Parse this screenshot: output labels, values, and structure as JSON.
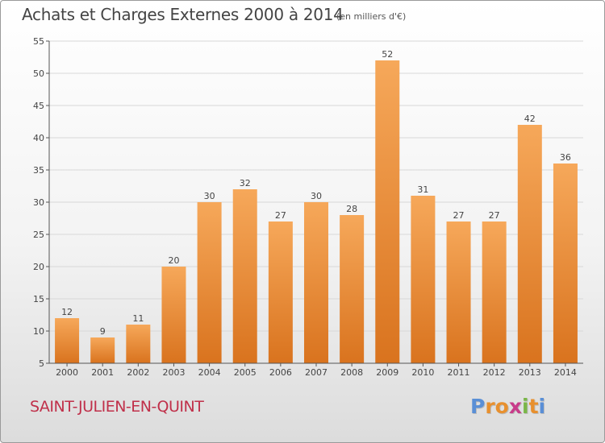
{
  "header": {
    "title": "Achats et Charges Externes 2000 à 2014",
    "unit": "(en milliers d'€)"
  },
  "footer": {
    "commune": "SAINT-JULIEN-EN-QUINT",
    "logo_letters": [
      "P",
      "r",
      "o",
      "x",
      "i",
      "t",
      "i"
    ],
    "logo_colors": [
      "#5a8fd6",
      "#e8902e",
      "#e8902e",
      "#c83c8a",
      "#7ab648",
      "#e8902e",
      "#5a8fd6"
    ]
  },
  "colors": {
    "bar_light": "#f6a85a",
    "bar_dark": "#d9731e",
    "grid": "#d8d8d8",
    "axis": "#555555",
    "text": "#444444"
  },
  "chart_data": {
    "type": "bar",
    "categories": [
      "2000",
      "2001",
      "2002",
      "2003",
      "2004",
      "2005",
      "2006",
      "2007",
      "2008",
      "2009",
      "2010",
      "2011",
      "2012",
      "2013",
      "2014"
    ],
    "values": [
      12,
      9,
      11,
      20,
      30,
      32,
      27,
      30,
      28,
      52,
      31,
      27,
      27,
      42,
      36
    ],
    "title": "Achats et Charges Externes 2000 à 2014",
    "ylim": [
      5,
      55
    ],
    "yticks": [
      5,
      10,
      15,
      20,
      25,
      30,
      35,
      40,
      45,
      50,
      55
    ],
    "grid": true,
    "data_labels": true
  }
}
